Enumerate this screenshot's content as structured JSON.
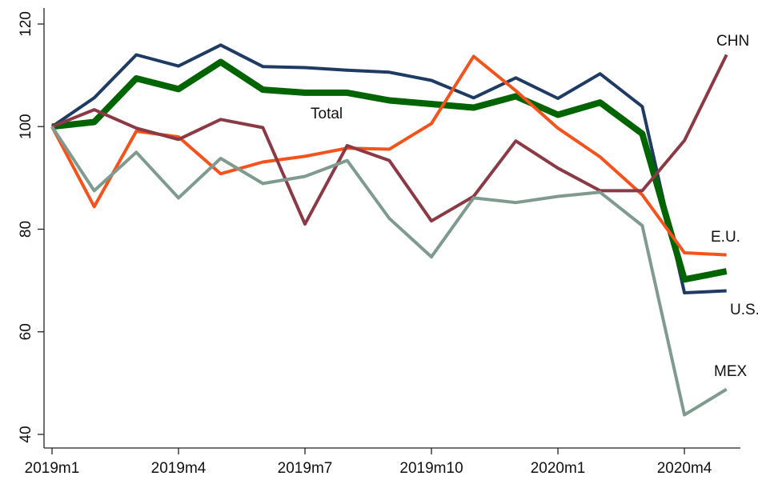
{
  "chart_data": {
    "type": "line",
    "categories": [
      "2019m1",
      null,
      null,
      "2019m4",
      null,
      null,
      "2019m7",
      null,
      null,
      "2019m10",
      null,
      null,
      "2020m1",
      null,
      null,
      "2020m4",
      null
    ],
    "ylim": [
      40,
      120
    ],
    "yticks": [
      40,
      60,
      80,
      100,
      120
    ],
    "series": [
      {
        "name": "U.S.",
        "color": "#1f3b63",
        "values": [
          100,
          105.6,
          114,
          111.8,
          115.9,
          111.7,
          111.5,
          111,
          110.6,
          109,
          105.6,
          109.5,
          105.5,
          110.3,
          103.9,
          67.6,
          68
        ]
      },
      {
        "name": "Total",
        "color": "#006400",
        "values": [
          100,
          100.9,
          109.4,
          107.3,
          112.6,
          107.2,
          106.6,
          106.6,
          105.1,
          104.4,
          103.7,
          105.9,
          102.3,
          104.7,
          98.6,
          70.2,
          71.8
        ]
      },
      {
        "name": "E.U.",
        "color": "#f5521c",
        "values": [
          100,
          84.4,
          99.1,
          98,
          90.8,
          93.1,
          94.2,
          95.8,
          95.6,
          100.6,
          113.7,
          107,
          99.7,
          94.1,
          86.7,
          75.4,
          75
        ]
      },
      {
        "name": "CHN",
        "color": "#8b3a45",
        "values": [
          100,
          103.3,
          99.7,
          97.5,
          101.4,
          99.8,
          81,
          96.3,
          93.4,
          81.6,
          86.4,
          97.2,
          91.9,
          87.5,
          87.5,
          97.3,
          114
        ]
      },
      {
        "name": "MEX",
        "color": "#7f9a8e",
        "values": [
          100,
          87.5,
          95,
          86.1,
          93.8,
          88.9,
          90.3,
          93.4,
          82.1,
          74.6,
          86.1,
          85.2,
          86.4,
          87.2,
          80.7,
          43.8,
          48.8
        ]
      }
    ]
  }
}
